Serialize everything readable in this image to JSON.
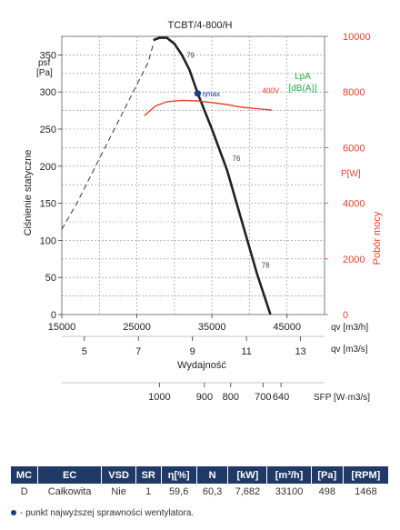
{
  "chart_data": {
    "type": "line",
    "title": "TCBT/4-800/H",
    "ylabel_left": "Ciśnienie statyczne",
    "ylabel_left_symbol": "psf",
    "ylabel_left_unit": "[Pa]",
    "ylabel_right": "Pobór mocy",
    "ylabel_right_symbol": "P[W]",
    "xlabel": "Wydajność",
    "sound_label_1": "LpA",
    "sound_label_2": "[dB(A)]",
    "x_unit_m3h": "qv [m3/h]",
    "x_unit_m3s": "qv [m3/s]",
    "sfp_label": "SFP [W·m3/s]",
    "xlim": [
      15000,
      50000
    ],
    "ylim": [
      0,
      375
    ],
    "ylim_right": [
      0,
      10000
    ],
    "x_ticks": [
      15000,
      25000,
      35000,
      45000
    ],
    "x_ticks_m3s": [
      5,
      7,
      9,
      11,
      13
    ],
    "y_ticks": [
      0,
      50,
      100,
      150,
      200,
      250,
      300,
      350
    ],
    "y_ticks_right": [
      0,
      2000,
      4000,
      6000,
      8000,
      10000
    ],
    "sfp_ticks": [
      "1000",
      "900",
      "800",
      "700",
      "640"
    ],
    "sfp_tick_positions_m3h": [
      28000,
      34000,
      37500,
      41800,
      44200
    ],
    "series": [
      {
        "name": "",
        "style": "dashed",
        "x": [
          15000,
          17000,
          19000,
          21000,
          23000,
          25000,
          26500,
          27200
        ],
        "y": [
          115,
          150,
          190,
          230,
          270,
          310,
          340,
          365
        ]
      },
      {
        "name": "",
        "style": "solid",
        "x": [
          27200,
          28000,
          29000,
          30000,
          31000,
          32000,
          33100,
          35000,
          37000,
          39000,
          41000,
          42800
        ],
        "y": [
          370,
          373,
          373,
          365,
          350,
          330,
          298,
          250,
          195,
          125,
          55,
          0
        ]
      },
      {
        "name": "400V",
        "axis": "right",
        "x": [
          26000,
          27500,
          29000,
          31000,
          33000,
          35000,
          37000,
          39000,
          41000,
          43000
        ],
        "y": [
          7150,
          7500,
          7650,
          7700,
          7680,
          7620,
          7550,
          7450,
          7400,
          7350
        ]
      }
    ],
    "markers": [
      {
        "label": "ηmax",
        "x": 33100,
        "y": 298
      }
    ],
    "annotations": [
      {
        "text": "79",
        "x": 31600,
        "y": 346
      },
      {
        "text": "76",
        "x": 37700,
        "y": 207
      },
      {
        "text": "78",
        "x": 41600,
        "y": 63
      },
      {
        "text": "400V",
        "x": 41700,
        "y": 7950,
        "axis": "right"
      }
    ],
    "grid": true,
    "colors": {
      "pressure": "#222222",
      "power": "#e8402a",
      "sound": "#27a845",
      "marker": "#1f3a8c"
    }
  },
  "table": {
    "headers": [
      "MC",
      "EC",
      "VSD",
      "SR",
      "η[%]",
      "N",
      "[kW]",
      "[m³/h]",
      "[Pa]",
      "[RPM]"
    ],
    "row": [
      "D",
      "Całkowita",
      "Nie",
      "1",
      "59,6",
      "60,3",
      "7,682",
      "33100",
      "498",
      "1468"
    ]
  },
  "footnote": "- punkt najwyższej sprawności wentylatora."
}
